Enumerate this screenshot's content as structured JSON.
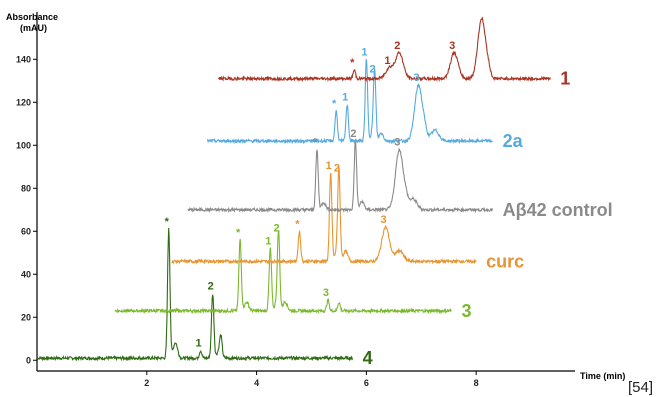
{
  "chart_data": {
    "type": "line",
    "title": "",
    "ylabel_line1": "Absorbance",
    "ylabel_line2": "(mAU)",
    "xlabel": "Time (min)",
    "citation": "[54]",
    "xlim": [
      0,
      9.8
    ],
    "ylim": [
      -5,
      162
    ],
    "x_ticks": [
      2,
      4,
      6,
      8
    ],
    "y_ticks": [
      0,
      20,
      40,
      60,
      80,
      100,
      120,
      140
    ],
    "grid": false,
    "series": [
      {
        "name": "4",
        "color": "#2e6b12",
        "x_offset": 0,
        "baseline": 1.0,
        "x_range": [
          0.0,
          5.75
        ],
        "peaks": [
          {
            "x": 2.4,
            "height": 60.0,
            "label": "*"
          },
          {
            "x": 2.98,
            "height": 3.5,
            "label": "1"
          },
          {
            "x": 3.2,
            "height": 30.0,
            "label": "2"
          },
          {
            "x": 3.35,
            "height": 8.0,
            "label": ""
          }
        ]
      },
      {
        "name": "3",
        "color": "#7cb82f",
        "x_offset": 1.4,
        "baseline": 23.0,
        "x_range": [
          1.42,
          7.55
        ],
        "peaks": [
          {
            "x": 3.7,
            "height": 33.0,
            "label": "*"
          },
          {
            "x": 4.25,
            "height": 29.0,
            "label": "1"
          },
          {
            "x": 4.4,
            "height": 35.0,
            "label": "2"
          },
          {
            "x": 5.3,
            "height": 5.0,
            "label": "3"
          },
          {
            "x": 5.5,
            "height": 4.0,
            "label": ""
          }
        ]
      },
      {
        "name": "curc",
        "color": "#e8952f",
        "x_offset": 2.5,
        "baseline": 46.0,
        "x_range": [
          2.45,
          8.0
        ],
        "peaks": [
          {
            "x": 4.78,
            "height": 14.0,
            "label": "*"
          },
          {
            "x": 5.35,
            "height": 41.0,
            "label": "1"
          },
          {
            "x": 5.5,
            "height": 40.0,
            "label": "2"
          },
          {
            "x": 6.35,
            "height": 16.0,
            "label": "3"
          },
          {
            "x": 6.6,
            "height": 5.0,
            "label": ""
          }
        ]
      },
      {
        "name": "Aβ42 control",
        "color": "#8a8a8a",
        "x_offset": 2.8,
        "baseline": 70.0,
        "x_range": [
          2.75,
          8.3
        ],
        "peaks": [
          {
            "x": 5.1,
            "height": 28.0,
            "label": "*"
          },
          {
            "x": 5.8,
            "height": 32.0,
            "label": "2"
          },
          {
            "x": 6.6,
            "height": 28.0,
            "label": "3"
          },
          {
            "x": 6.85,
            "height": 5.0,
            "label": ""
          }
        ]
      },
      {
        "name": "2a",
        "color": "#55aadf",
        "x_offset": 3.1,
        "baseline": 102.0,
        "x_range": [
          3.1,
          8.3
        ],
        "peaks": [
          {
            "x": 5.45,
            "height": 14.0,
            "label": "*"
          },
          {
            "x": 5.65,
            "height": 17.0,
            "label": "1"
          },
          {
            "x": 6.0,
            "height": 38.0,
            "label": "1"
          },
          {
            "x": 6.15,
            "height": 30.0,
            "label": "2"
          },
          {
            "x": 6.95,
            "height": 26.0,
            "label": "3"
          },
          {
            "x": 7.25,
            "height": 5.0,
            "label": ""
          }
        ]
      },
      {
        "name": "1",
        "color": "#aa3322",
        "x_offset": 3.3,
        "baseline": 131.0,
        "x_range": [
          3.3,
          9.35
        ],
        "peaks": [
          {
            "x": 5.78,
            "height": 4.0,
            "label": "*"
          },
          {
            "x": 6.42,
            "height": 5.0,
            "label": "1"
          },
          {
            "x": 6.6,
            "height": 12.0,
            "label": "2"
          },
          {
            "x": 7.6,
            "height": 12.0,
            "label": "3"
          },
          {
            "x": 8.1,
            "height": 28.0,
            "label": ""
          }
        ]
      }
    ]
  }
}
